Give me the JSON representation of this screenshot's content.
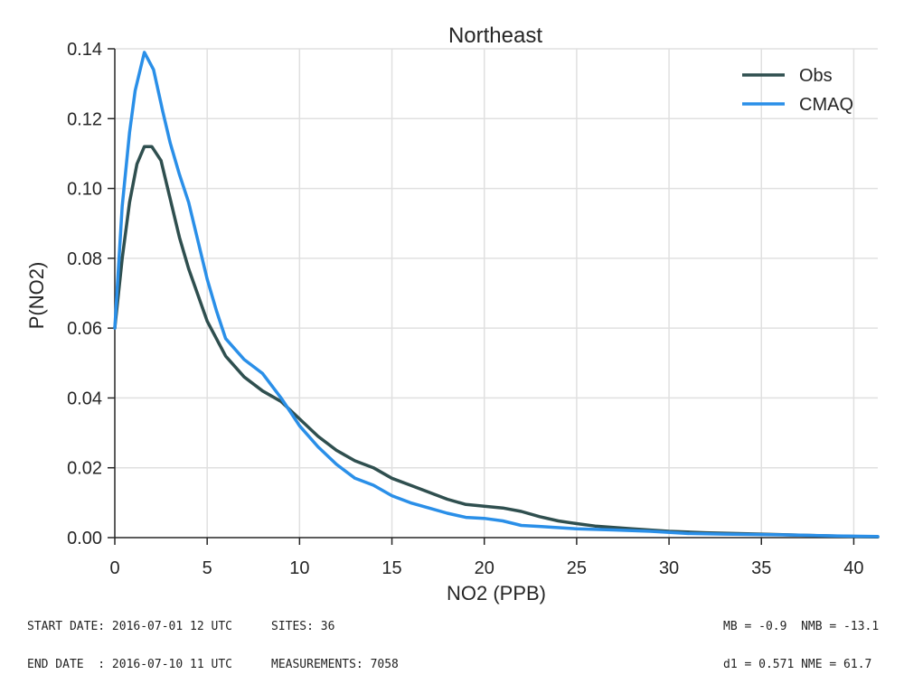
{
  "chart_data": {
    "type": "line",
    "title": "Northeast",
    "xlabel": "NO2  (PPB)",
    "ylabel": "P(NO2)",
    "xlim": [
      0,
      41.3
    ],
    "ylim": [
      0,
      0.14
    ],
    "xticks": [
      0,
      5,
      10,
      15,
      20,
      25,
      30,
      35,
      40
    ],
    "yticks": [
      "0.00",
      "0.02",
      "0.04",
      "0.06",
      "0.08",
      "0.10",
      "0.12",
      "0.14"
    ],
    "grid": true,
    "legend_position": "top-right",
    "series": [
      {
        "name": "Obs",
        "color": "#2f4f4f",
        "x": [
          0,
          0.4,
          0.8,
          1.2,
          1.6,
          2.0,
          2.5,
          3.0,
          3.5,
          4.0,
          5.0,
          6.0,
          7.0,
          8.0,
          9.0,
          10.0,
          11.0,
          12.0,
          13.0,
          14.0,
          15.0,
          16.0,
          17.0,
          18.0,
          19.0,
          20.0,
          21.0,
          22.0,
          23.0,
          24.0,
          25.0,
          26.0,
          28.0,
          30.0,
          32.0,
          35.0,
          38.0,
          41.3
        ],
        "y": [
          0.06,
          0.08,
          0.096,
          0.107,
          0.112,
          0.112,
          0.108,
          0.097,
          0.086,
          0.077,
          0.062,
          0.052,
          0.046,
          0.042,
          0.039,
          0.034,
          0.029,
          0.025,
          0.022,
          0.02,
          0.017,
          0.015,
          0.013,
          0.011,
          0.0095,
          0.009,
          0.0085,
          0.0075,
          0.006,
          0.0048,
          0.004,
          0.0033,
          0.0025,
          0.0018,
          0.0014,
          0.001,
          0.0006,
          0.0002
        ]
      },
      {
        "name": "CMAQ",
        "color": "#2a8fe8",
        "x": [
          0,
          0.4,
          0.8,
          1.1,
          1.6,
          2.1,
          2.6,
          3.0,
          3.5,
          4.0,
          5.0,
          5.5,
          6.0,
          7.0,
          8.0,
          9.0,
          10.0,
          11.0,
          12.0,
          13.0,
          14.0,
          15.0,
          16.0,
          17.0,
          18.0,
          19.0,
          20.0,
          21.0,
          22.0,
          23.0,
          25.0,
          27.0,
          29.0,
          31.0,
          33.0,
          36.0,
          39.0,
          41.3
        ],
        "y": [
          0.06,
          0.095,
          0.116,
          0.128,
          0.139,
          0.134,
          0.122,
          0.113,
          0.104,
          0.096,
          0.074,
          0.065,
          0.057,
          0.051,
          0.047,
          0.04,
          0.032,
          0.026,
          0.021,
          0.017,
          0.015,
          0.012,
          0.01,
          0.0085,
          0.007,
          0.0058,
          0.0055,
          0.0048,
          0.0035,
          0.0032,
          0.0025,
          0.0022,
          0.0018,
          0.0012,
          0.001,
          0.0008,
          0.0005,
          0.0003
        ]
      }
    ]
  },
  "footer": {
    "start_date": "START DATE: 2016-07-01 12 UTC",
    "end_date": "END DATE  : 2016-07-10 11 UTC",
    "sites": "SITES: 36",
    "measurements": "MEASUREMENTS: 7058",
    "stats_line1": "MB = -0.9  NMB = -13.1",
    "stats_line2": "d1 = 0.571 NME = 61.7"
  }
}
